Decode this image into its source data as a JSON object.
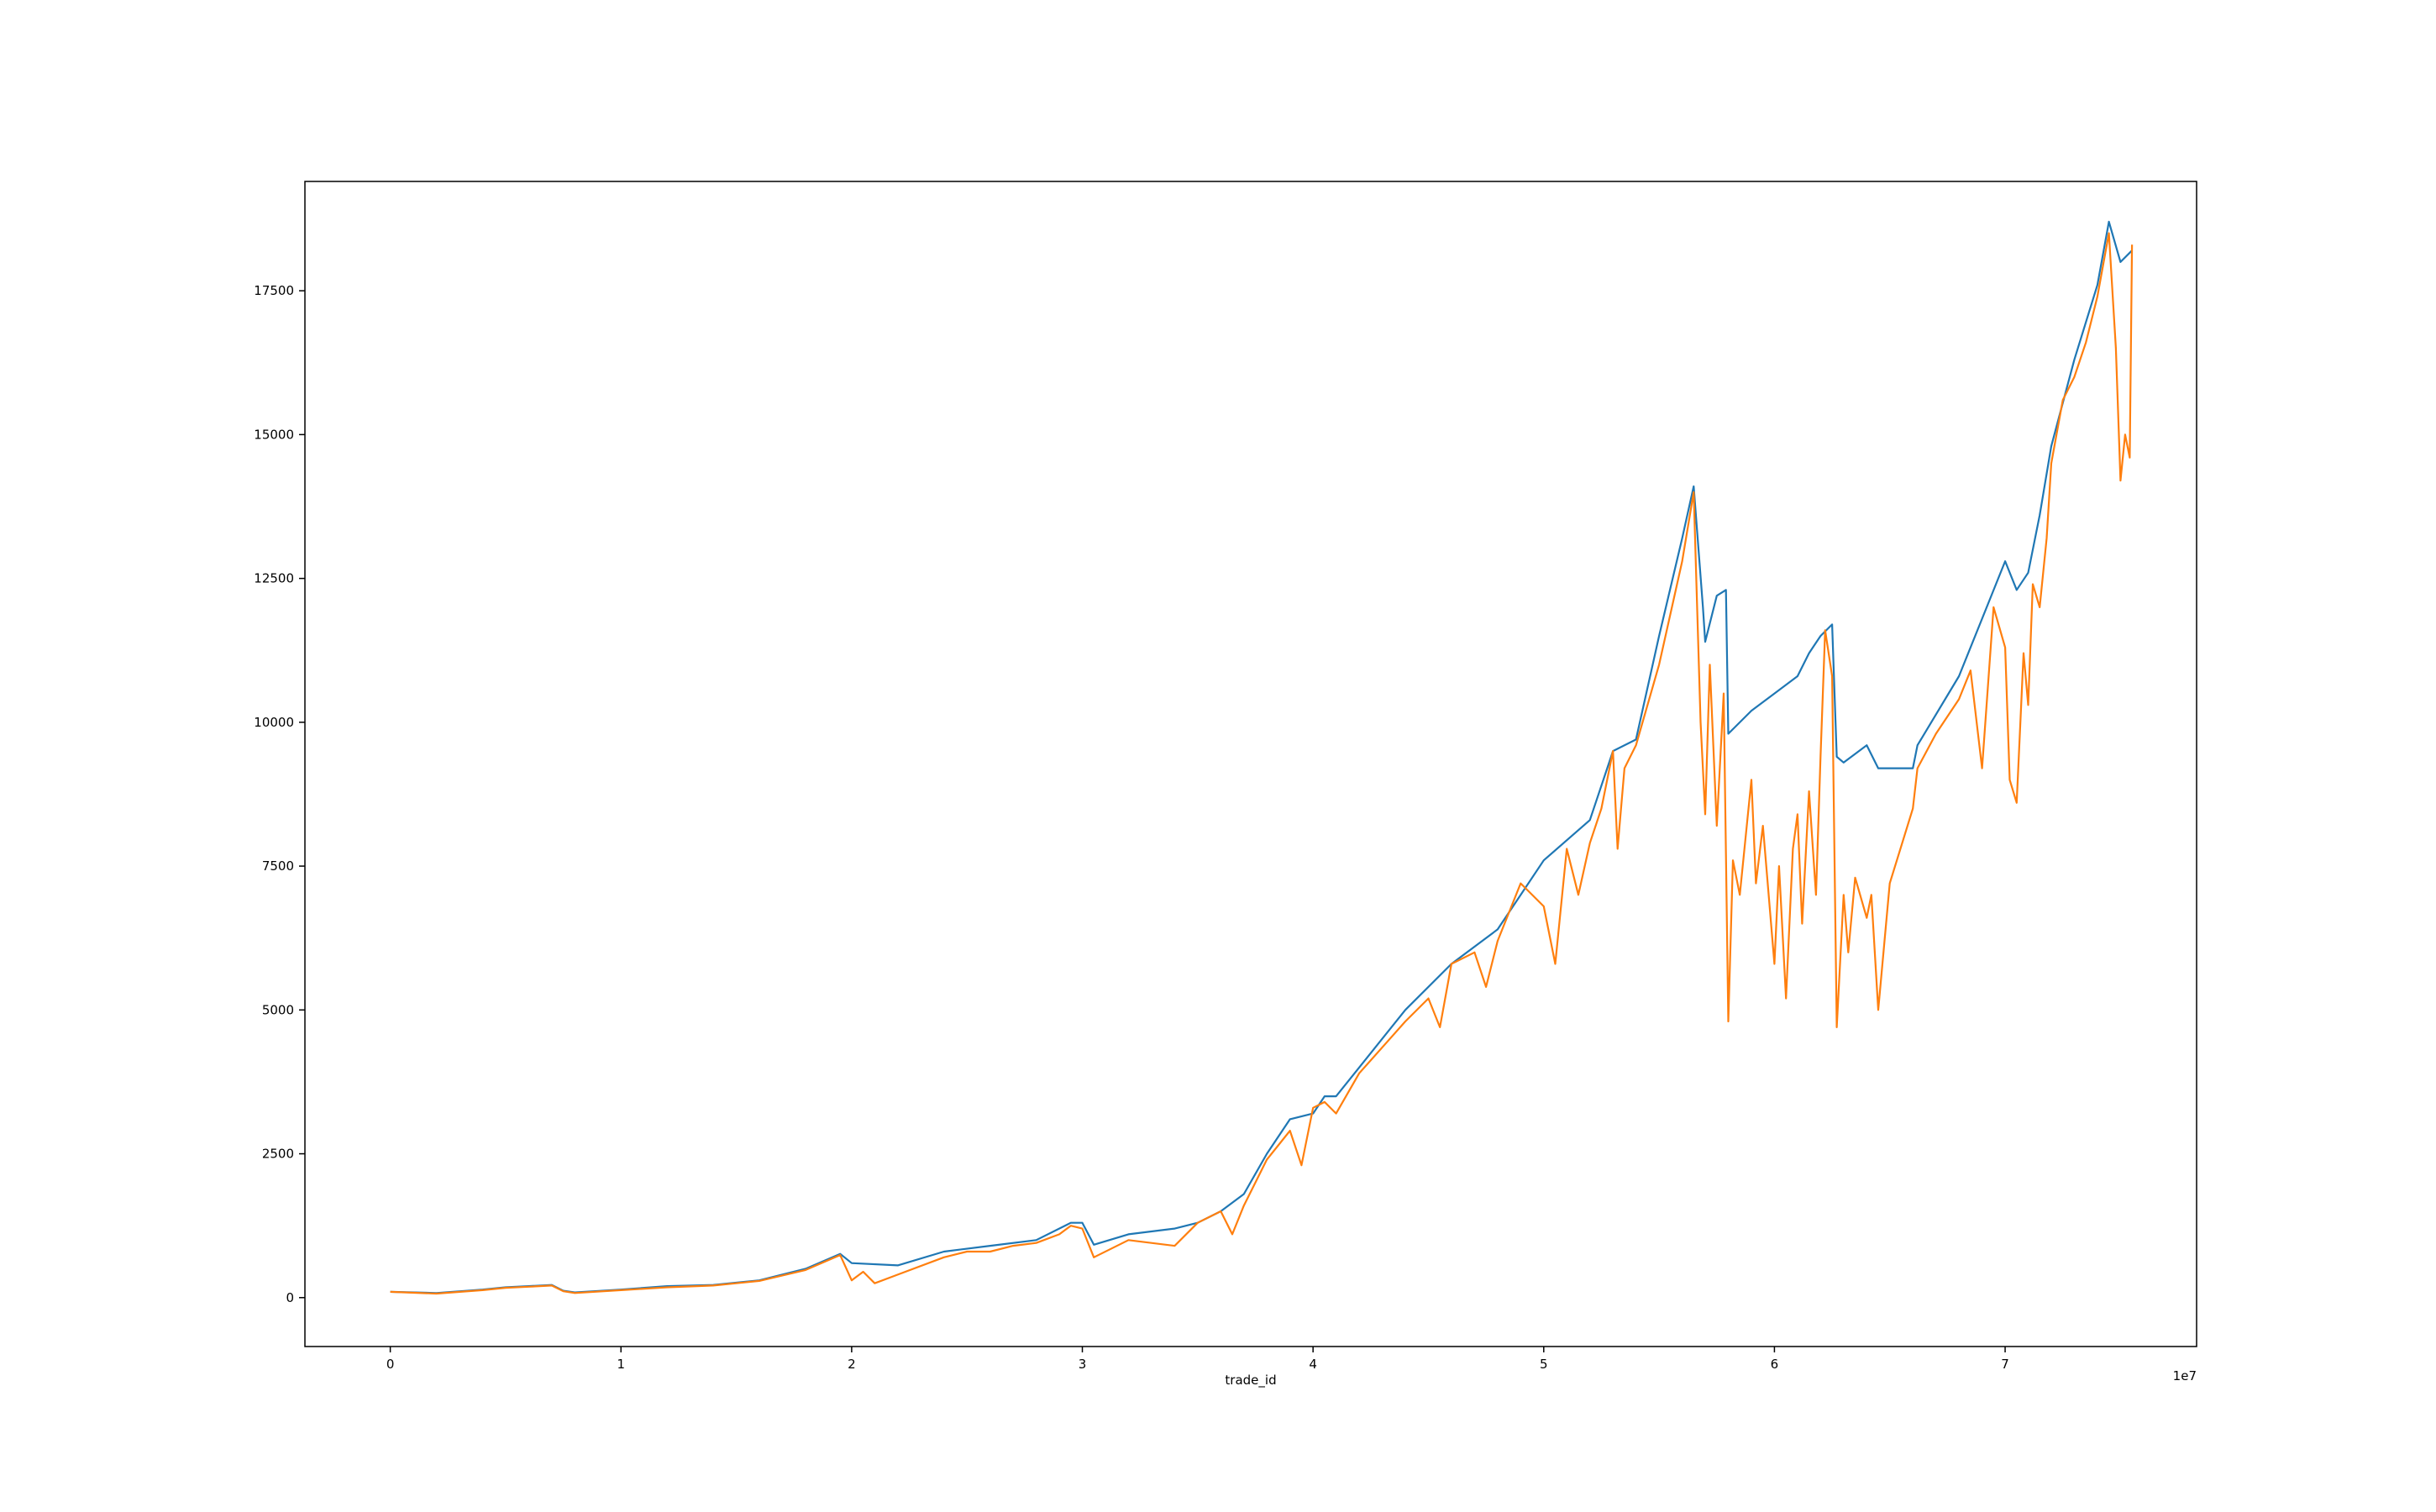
{
  "chart_data": {
    "type": "line",
    "title": "",
    "xlabel": "trade_id",
    "ylabel": "",
    "x_offset_label": "1e7",
    "xlim": [
      -0.37,
      7.83
    ],
    "ylim": [
      -850,
      19400
    ],
    "x_scale_note": "x values in units of 1e7",
    "x_ticks": [
      0,
      1,
      2,
      3,
      4,
      5,
      6,
      7
    ],
    "x_tick_labels": [
      "0",
      "1",
      "2",
      "3",
      "4",
      "5",
      "6",
      "7"
    ],
    "y_ticks": [
      0,
      2500,
      5000,
      7500,
      10000,
      12500,
      15000,
      17500
    ],
    "y_tick_labels": [
      "0",
      "2500",
      "5000",
      "7500",
      "10000",
      "12500",
      "15000",
      "17500"
    ],
    "grid": false,
    "legend": "none",
    "series": [
      {
        "color": "#1f77b4",
        "points": [
          [
            0.0,
            100
          ],
          [
            0.2,
            80
          ],
          [
            0.4,
            140
          ],
          [
            0.5,
            180
          ],
          [
            0.6,
            200
          ],
          [
            0.7,
            220
          ],
          [
            0.75,
            120
          ],
          [
            0.8,
            90
          ],
          [
            1.0,
            140
          ],
          [
            1.2,
            200
          ],
          [
            1.4,
            220
          ],
          [
            1.6,
            300
          ],
          [
            1.8,
            500
          ],
          [
            1.95,
            760
          ],
          [
            2.0,
            600
          ],
          [
            2.2,
            560
          ],
          [
            2.4,
            800
          ],
          [
            2.6,
            900
          ],
          [
            2.8,
            1000
          ],
          [
            2.95,
            1300
          ],
          [
            3.0,
            1300
          ],
          [
            3.05,
            920
          ],
          [
            3.2,
            1100
          ],
          [
            3.4,
            1200
          ],
          [
            3.5,
            1300
          ],
          [
            3.6,
            1500
          ],
          [
            3.7,
            1800
          ],
          [
            3.8,
            2500
          ],
          [
            3.9,
            3100
          ],
          [
            4.0,
            3200
          ],
          [
            4.05,
            3500
          ],
          [
            4.1,
            3500
          ],
          [
            4.2,
            4000
          ],
          [
            4.4,
            5000
          ],
          [
            4.6,
            5800
          ],
          [
            4.8,
            6400
          ],
          [
            5.0,
            7600
          ],
          [
            5.2,
            8300
          ],
          [
            5.3,
            9500
          ],
          [
            5.4,
            9700
          ],
          [
            5.5,
            11500
          ],
          [
            5.6,
            13200
          ],
          [
            5.65,
            14100
          ],
          [
            5.69,
            12000
          ],
          [
            5.7,
            11400
          ],
          [
            5.75,
            12200
          ],
          [
            5.79,
            12300
          ],
          [
            5.8,
            9800
          ],
          [
            5.9,
            10200
          ],
          [
            6.0,
            10500
          ],
          [
            6.1,
            10800
          ],
          [
            6.15,
            11200
          ],
          [
            6.2,
            11500
          ],
          [
            6.25,
            11700
          ],
          [
            6.27,
            9400
          ],
          [
            6.3,
            9300
          ],
          [
            6.4,
            9600
          ],
          [
            6.45,
            9200
          ],
          [
            6.6,
            9200
          ],
          [
            6.62,
            9600
          ],
          [
            6.8,
            10800
          ],
          [
            6.9,
            11800
          ],
          [
            7.0,
            12800
          ],
          [
            7.05,
            12300
          ],
          [
            7.1,
            12600
          ],
          [
            7.15,
            13600
          ],
          [
            7.2,
            14800
          ],
          [
            7.3,
            16300
          ],
          [
            7.4,
            17600
          ],
          [
            7.45,
            18700
          ],
          [
            7.5,
            18000
          ],
          [
            7.55,
            18200
          ]
        ]
      },
      {
        "color": "#ff7f0e",
        "points": [
          [
            0.0,
            100
          ],
          [
            0.2,
            70
          ],
          [
            0.4,
            130
          ],
          [
            0.5,
            170
          ],
          [
            0.6,
            190
          ],
          [
            0.7,
            210
          ],
          [
            0.75,
            110
          ],
          [
            0.8,
            80
          ],
          [
            1.0,
            130
          ],
          [
            1.2,
            180
          ],
          [
            1.4,
            210
          ],
          [
            1.6,
            290
          ],
          [
            1.8,
            480
          ],
          [
            1.95,
            740
          ],
          [
            2.0,
            300
          ],
          [
            2.05,
            450
          ],
          [
            2.1,
            250
          ],
          [
            2.2,
            400
          ],
          [
            2.4,
            700
          ],
          [
            2.5,
            800
          ],
          [
            2.6,
            800
          ],
          [
            2.7,
            900
          ],
          [
            2.8,
            950
          ],
          [
            2.9,
            1100
          ],
          [
            2.95,
            1250
          ],
          [
            3.0,
            1200
          ],
          [
            3.05,
            700
          ],
          [
            3.2,
            1000
          ],
          [
            3.4,
            900
          ],
          [
            3.5,
            1300
          ],
          [
            3.6,
            1500
          ],
          [
            3.65,
            1100
          ],
          [
            3.7,
            1600
          ],
          [
            3.8,
            2400
          ],
          [
            3.9,
            2900
          ],
          [
            3.95,
            2300
          ],
          [
            4.0,
            3300
          ],
          [
            4.05,
            3400
          ],
          [
            4.1,
            3200
          ],
          [
            4.2,
            3900
          ],
          [
            4.4,
            4800
          ],
          [
            4.5,
            5200
          ],
          [
            4.55,
            4700
          ],
          [
            4.6,
            5800
          ],
          [
            4.7,
            6000
          ],
          [
            4.75,
            5400
          ],
          [
            4.8,
            6200
          ],
          [
            4.9,
            7200
          ],
          [
            5.0,
            6800
          ],
          [
            5.05,
            5800
          ],
          [
            5.1,
            7800
          ],
          [
            5.15,
            7000
          ],
          [
            5.2,
            7900
          ],
          [
            5.25,
            8500
          ],
          [
            5.3,
            9500
          ],
          [
            5.32,
            7800
          ],
          [
            5.35,
            9200
          ],
          [
            5.4,
            9600
          ],
          [
            5.5,
            11000
          ],
          [
            5.6,
            12800
          ],
          [
            5.65,
            14000
          ],
          [
            5.68,
            10000
          ],
          [
            5.7,
            8400
          ],
          [
            5.72,
            11000
          ],
          [
            5.75,
            8200
          ],
          [
            5.78,
            10500
          ],
          [
            5.8,
            4800
          ],
          [
            5.82,
            7600
          ],
          [
            5.85,
            7000
          ],
          [
            5.9,
            9000
          ],
          [
            5.92,
            7200
          ],
          [
            5.95,
            8200
          ],
          [
            6.0,
            5800
          ],
          [
            6.02,
            7500
          ],
          [
            6.05,
            5200
          ],
          [
            6.08,
            7800
          ],
          [
            6.1,
            8400
          ],
          [
            6.12,
            6500
          ],
          [
            6.15,
            8800
          ],
          [
            6.18,
            7000
          ],
          [
            6.2,
            9400
          ],
          [
            6.22,
            11600
          ],
          [
            6.25,
            10800
          ],
          [
            6.27,
            4700
          ],
          [
            6.3,
            7000
          ],
          [
            6.32,
            6000
          ],
          [
            6.35,
            7300
          ],
          [
            6.4,
            6600
          ],
          [
            6.42,
            7000
          ],
          [
            6.45,
            5000
          ],
          [
            6.5,
            7200
          ],
          [
            6.6,
            8500
          ],
          [
            6.62,
            9200
          ],
          [
            6.7,
            9800
          ],
          [
            6.8,
            10400
          ],
          [
            6.85,
            10900
          ],
          [
            6.9,
            9200
          ],
          [
            6.95,
            12000
          ],
          [
            7.0,
            11300
          ],
          [
            7.02,
            9000
          ],
          [
            7.05,
            8600
          ],
          [
            7.08,
            11200
          ],
          [
            7.1,
            10300
          ],
          [
            7.12,
            12400
          ],
          [
            7.15,
            12000
          ],
          [
            7.18,
            13200
          ],
          [
            7.2,
            14500
          ],
          [
            7.25,
            15600
          ],
          [
            7.3,
            16000
          ],
          [
            7.35,
            16600
          ],
          [
            7.4,
            17400
          ],
          [
            7.45,
            18500
          ],
          [
            7.48,
            16500
          ],
          [
            7.5,
            14200
          ],
          [
            7.52,
            15000
          ],
          [
            7.54,
            14600
          ],
          [
            7.55,
            18300
          ]
        ]
      }
    ]
  }
}
